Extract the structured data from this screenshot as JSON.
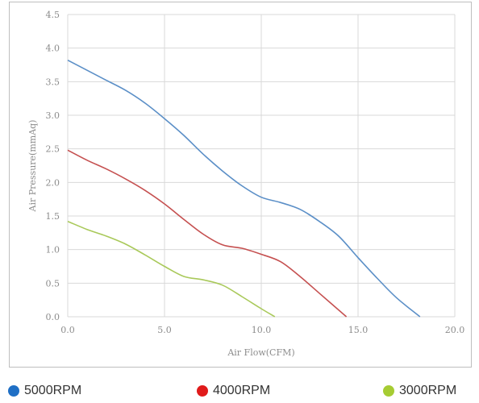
{
  "chart_data": {
    "type": "line",
    "xlabel": "Air Flow(CFM)",
    "ylabel": "Air Pressure(mmAq)",
    "xlim": [
      0,
      20
    ],
    "ylim": [
      0,
      4.5
    ],
    "x_ticks": [
      "0.0",
      "5.0",
      "10.0",
      "15.0",
      "20.0"
    ],
    "y_ticks": [
      "0.0",
      "0.5",
      "1.0",
      "1.5",
      "2.0",
      "2.5",
      "3.0",
      "3.5",
      "4.0",
      "4.5"
    ],
    "grid": true,
    "legend_position": "bottom",
    "series": [
      {
        "name": "5000RPM",
        "color": "#5b8fc7",
        "legend_color": "#1f6fc5",
        "x": [
          0,
          1,
          2,
          3,
          4,
          5,
          6,
          7,
          8,
          9,
          10,
          11,
          12,
          13,
          14,
          15,
          16,
          17,
          18.2
        ],
        "y": [
          3.82,
          3.67,
          3.52,
          3.37,
          3.18,
          2.95,
          2.7,
          2.42,
          2.17,
          1.95,
          1.78,
          1.7,
          1.6,
          1.42,
          1.2,
          0.88,
          0.57,
          0.28,
          0.0
        ]
      },
      {
        "name": "4000RPM",
        "color": "#c55050",
        "legend_color": "#e01b1b",
        "x": [
          0,
          1,
          2,
          3,
          4,
          5,
          6,
          7,
          8,
          9,
          10,
          11,
          12,
          13,
          14.4
        ],
        "y": [
          2.48,
          2.33,
          2.2,
          2.05,
          1.88,
          1.68,
          1.45,
          1.23,
          1.07,
          1.02,
          0.93,
          0.82,
          0.6,
          0.35,
          0.0
        ]
      },
      {
        "name": "3000RPM",
        "color": "#a9c95a",
        "legend_color": "#a6cc33",
        "x": [
          0,
          1,
          2,
          3,
          4,
          5,
          6,
          7,
          8,
          9,
          10,
          10.7
        ],
        "y": [
          1.42,
          1.3,
          1.2,
          1.08,
          0.92,
          0.75,
          0.6,
          0.55,
          0.47,
          0.3,
          0.12,
          0.0
        ]
      }
    ]
  }
}
